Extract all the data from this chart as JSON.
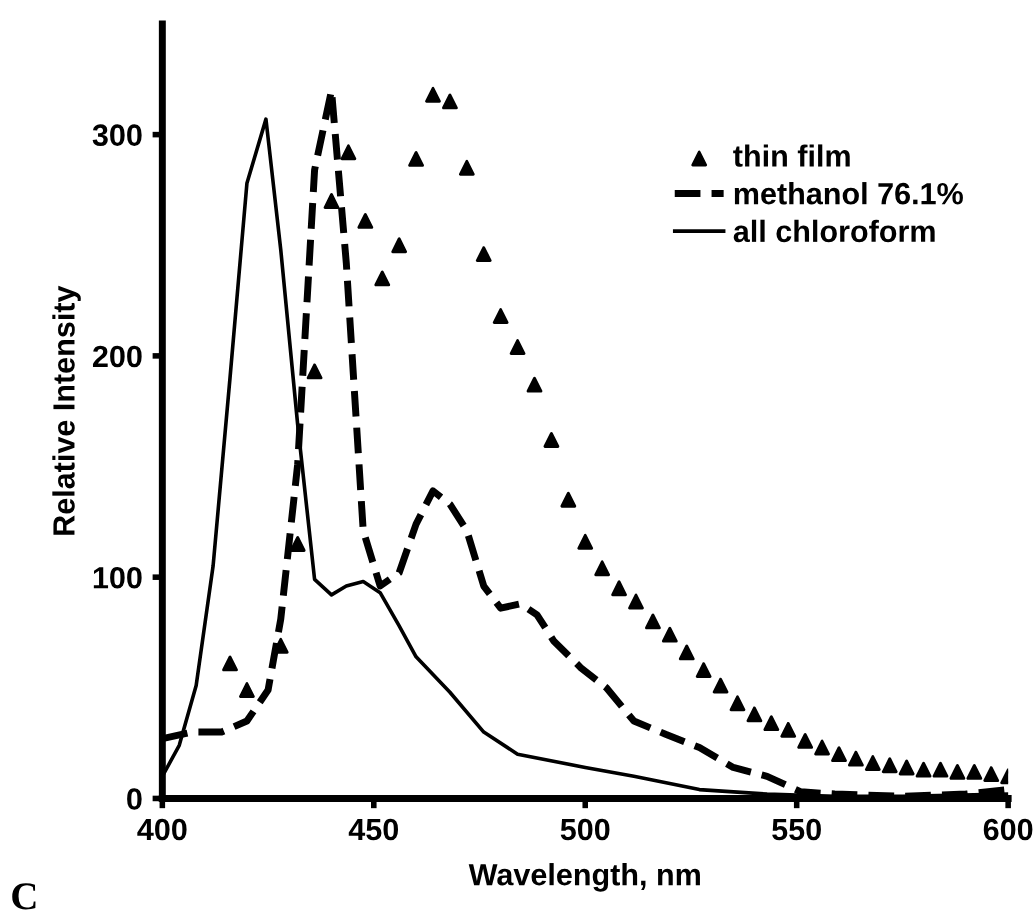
{
  "chart_data": {
    "type": "line",
    "xlabel": "Wavelength, nm",
    "ylabel": "Relative Intensity",
    "annotations": [
      "C"
    ],
    "xlim": [
      400,
      600
    ],
    "xticks": [
      400,
      450,
      500,
      550,
      600
    ],
    "ylim": [
      0,
      350
    ],
    "yticks": [
      0,
      100,
      200,
      300
    ],
    "grid": false,
    "legend": "top right",
    "series": [
      {
        "name": "thin film",
        "color": "#000000",
        "type": "scatter",
        "marker": "triangle",
        "x": [
          416,
          420,
          428,
          432,
          436,
          440,
          444,
          448,
          452,
          456,
          460,
          464,
          468,
          472,
          476,
          480,
          484,
          488,
          492,
          496,
          500,
          504,
          508,
          512,
          516,
          520,
          524,
          528,
          532,
          536,
          540,
          544,
          548,
          552,
          556,
          560,
          564,
          568,
          572,
          576,
          580,
          584,
          588,
          592,
          596,
          600
        ],
        "values": [
          61,
          49,
          69,
          115,
          193,
          270,
          292,
          261,
          235,
          250,
          289,
          318,
          315,
          285,
          246,
          218,
          204,
          187,
          162,
          135,
          116,
          104,
          95,
          89,
          80,
          74,
          66,
          58,
          51,
          43,
          38,
          34,
          31,
          26,
          23,
          20,
          18,
          16,
          15,
          14,
          13,
          13,
          12,
          12,
          11,
          10
        ]
      },
      {
        "name": "methanol 76.1%",
        "color": "#000000",
        "line_style": "dashed",
        "x": [
          400,
          407,
          414,
          420,
          425,
          428,
          432,
          436,
          440,
          443.5,
          447.5,
          451.5,
          456,
          460,
          464,
          468,
          472,
          476,
          480,
          484.7,
          488.6,
          492.6,
          499,
          505,
          511.5,
          519,
          527,
          535,
          543,
          551,
          559,
          575,
          590,
          600
        ],
        "values": [
          27,
          30,
          30,
          35,
          49,
          81,
          151,
          284,
          320,
          242,
          121,
          96,
          102,
          124,
          139,
          133,
          121,
          96,
          86,
          88,
          83,
          71,
          59,
          50,
          35,
          29,
          23,
          14,
          10,
          3,
          2,
          1,
          2,
          4
        ]
      },
      {
        "name": "all chloroform",
        "color": "#000000",
        "line_style": "solid",
        "x": [
          400,
          404,
          408,
          412,
          416,
          420,
          424.5,
          428,
          432,
          436,
          440,
          443.5,
          447.5,
          451.5,
          456,
          460,
          468,
          476,
          484,
          500,
          511.5,
          527,
          543,
          559,
          575,
          600
        ],
        "values": [
          10,
          24,
          51,
          105,
          190,
          278,
          307,
          248,
          169,
          99,
          92,
          96,
          98,
          93,
          78,
          64,
          48,
          30,
          20,
          14,
          10,
          4,
          2,
          1,
          1,
          2
        ]
      }
    ]
  }
}
